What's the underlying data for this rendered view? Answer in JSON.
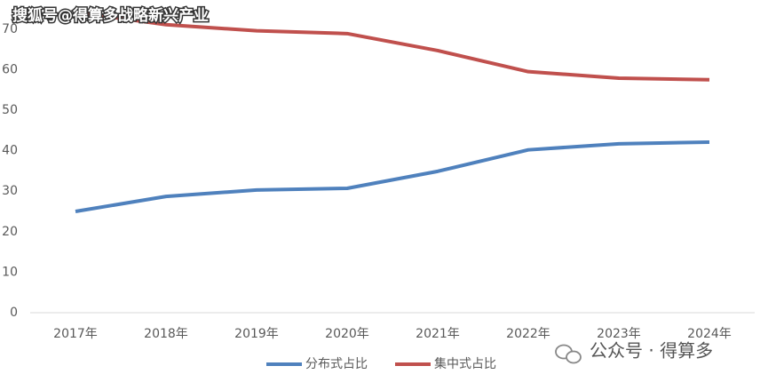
{
  "chart_data": {
    "type": "line",
    "categories": [
      "2017年",
      "2018年",
      "2019年",
      "2020年",
      "2021年",
      "2022年",
      "2023年",
      "2024年"
    ],
    "series": [
      {
        "name": "分布式占比",
        "color": "#4f81bd",
        "values": [
          25,
          28.7,
          30.3,
          30.7,
          34.9,
          40.2,
          41.7,
          42.1
        ]
      },
      {
        "name": "集中式占比",
        "color": "#c0504d",
        "values": [
          74.2,
          71.1,
          69.6,
          68.9,
          64.7,
          59.5,
          57.9,
          57.5
        ]
      }
    ],
    "ylim": [
      0,
      75
    ],
    "yticks": [
      0,
      10,
      20,
      30,
      40,
      50,
      60,
      70
    ],
    "grid": false,
    "legend": "bottom",
    "watermarks": [
      "搜狐号@得算多战略新兴产业",
      "公众号 · 得算多"
    ]
  }
}
